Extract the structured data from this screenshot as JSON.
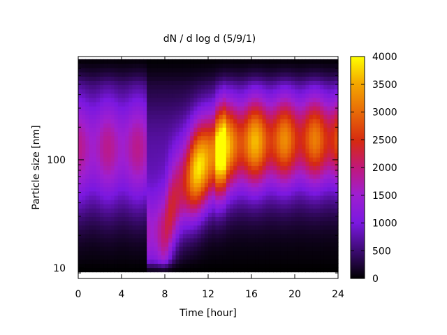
{
  "chart_data": {
    "type": "heatmap",
    "title": "dN / d log d (5/9/1)",
    "xlabel": "Time [hour]",
    "ylabel": "Particle size [nm]",
    "xlim": [
      0,
      24
    ],
    "ylim": [
      8,
      900
    ],
    "yscale": "log",
    "x_ticks": [
      0,
      4,
      8,
      12,
      16,
      20,
      24
    ],
    "y_ticks": [
      10,
      100
    ],
    "colorbar": {
      "ticks": [
        0,
        500,
        1000,
        1500,
        2000,
        2500,
        3000,
        3500,
        4000
      ],
      "range": [
        0,
        4000
      ],
      "palette": "black-purple-red-orange-yellow"
    },
    "approx_peak": {
      "size_nm": [
        20,
        60,
        100,
        140,
        150,
        160
      ],
      "time_h": [
        8,
        10,
        12,
        14,
        16,
        20
      ],
      "max_value": [
        2000,
        2700,
        3800,
        3000,
        3000,
        2500
      ]
    }
  }
}
